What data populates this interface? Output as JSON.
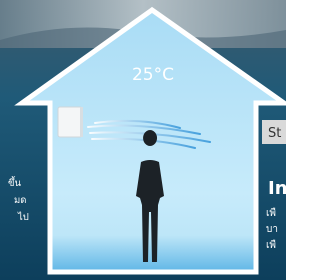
{
  "temperature": "25°C",
  "left_text": [
    "ขึ้น",
    "มด",
    "ไป"
  ],
  "right_label": "St",
  "right_heading": "In",
  "right_text": [
    "เพื",
    "บา",
    "เพื"
  ]
}
